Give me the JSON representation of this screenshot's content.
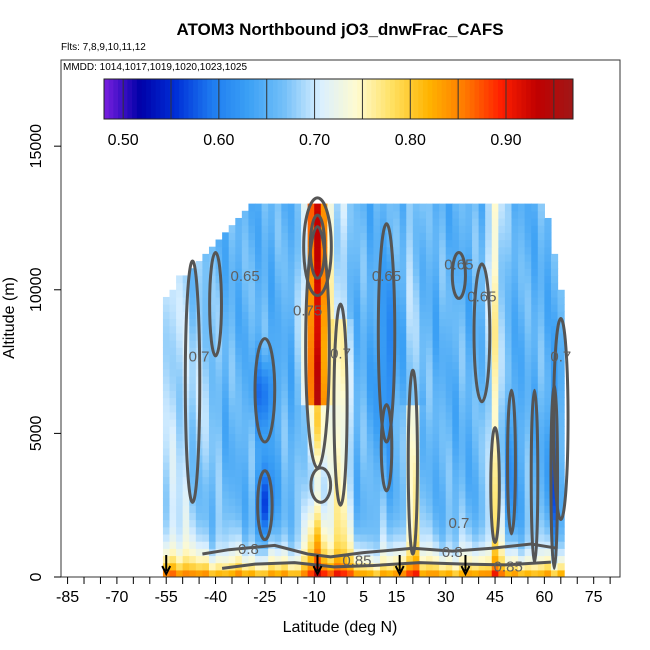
{
  "chart_data": {
    "type": "heatmap",
    "title": "ATOM3 Northbound jO3_dnwFrac_CAFS",
    "flights_label": "Flts: 7,8,9,10,11,12",
    "mmdd_label": "MMDD: 1014,1017,1019,1020,1023,1025",
    "xlabel": "Latitude (deg N)",
    "ylabel": "Altitude (m)",
    "xlim": [
      -87,
      83
    ],
    "ylim": [
      0,
      18000
    ],
    "x_ticks": [
      -85,
      -70,
      -55,
      -40,
      -25,
      -10,
      5,
      15,
      30,
      45,
      60,
      75
    ],
    "x_tick_labels": [
      "-85",
      "-70",
      "-55",
      "-40",
      "-25",
      "-10",
      "5",
      "15",
      "30",
      "45",
      "60",
      "75"
    ],
    "y_ticks": [
      0,
      5000,
      10000,
      15000
    ],
    "y_tick_labels": [
      "0",
      "5000",
      "10000",
      "15000"
    ],
    "colorbar": {
      "range": [
        0.48,
        0.97
      ],
      "ticks": [
        0.5,
        0.6,
        0.7,
        0.8,
        0.9
      ],
      "tick_labels": [
        "0.50",
        "0.60",
        "0.70",
        "0.80",
        "0.90"
      ],
      "colors": [
        "#7a1fe0",
        "#0000a8",
        "#0030d8",
        "#1e7cf0",
        "#3ba0f5",
        "#74c0f8",
        "#d9efff",
        "#fffbd0",
        "#ffe060",
        "#ffb400",
        "#ff7a00",
        "#ff2000",
        "#c00000",
        "#a01818"
      ]
    },
    "data_extent": {
      "lat_range": [
        -56,
        66
      ],
      "alt_top_m": 13000
    },
    "high_value_column": {
      "lat": -9,
      "value": 0.92,
      "alt_range": [
        6000,
        13000
      ]
    },
    "boundary_layer_value": 0.85,
    "interior_value": 0.65,
    "contour_labels": [
      {
        "text": "0.65",
        "lat": -31,
        "alt": 10300
      },
      {
        "text": "0.75",
        "lat": -12,
        "alt": 9100
      },
      {
        "text": "0.7",
        "lat": -2,
        "alt": 7600
      },
      {
        "text": "0.65",
        "lat": 12,
        "alt": 10300
      },
      {
        "text": "0.65",
        "lat": 34,
        "alt": 10700
      },
      {
        "text": "0.65",
        "lat": 41,
        "alt": 9600
      },
      {
        "text": "0.7",
        "lat": -45,
        "alt": 7500
      },
      {
        "text": "0.7",
        "lat": 65,
        "alt": 7500
      },
      {
        "text": "0.8",
        "lat": -30,
        "alt": 800
      },
      {
        "text": "0.85",
        "lat": 3,
        "alt": 400
      },
      {
        "text": "0.8",
        "lat": 32,
        "alt": 700
      },
      {
        "text": "0.85",
        "lat": 49,
        "alt": 200
      },
      {
        "text": "0.7",
        "lat": 34,
        "alt": 1700
      }
    ],
    "flight_markers_lat": [
      -55,
      -9,
      16,
      36
    ]
  }
}
